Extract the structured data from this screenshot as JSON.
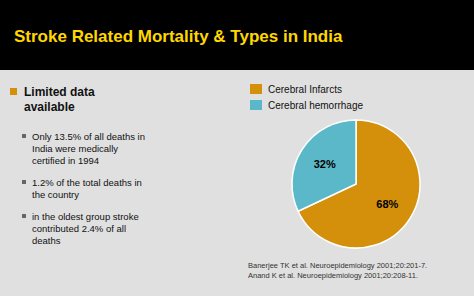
{
  "chart_data": {
    "type": "pie",
    "title": "Stroke Related Mortality & Types in India",
    "categories": [
      "Cerebral Infarcts",
      "Cerebral hemorrhage"
    ],
    "values": [
      68,
      32
    ],
    "value_labels": [
      "68%",
      "32%"
    ],
    "colors": [
      "#D4900A",
      "#5BB8C8"
    ],
    "data_labels": true,
    "legend": "top",
    "annotations": [
      "Limited data\navailable",
      "Only 13.5% of all deaths in\nIndia were medically\ncertified in 1994",
      "1.2% of the total deaths in\nthe country",
      "in the oldest group stroke\ncontributed 2.4% of all\ndeaths"
    ],
    "source": "Banerjee TK et al. Neuroepidemiology 2001;20:201-7.\nAnand K et al. Neuroepidemiology 2001;20:208-11."
  }
}
